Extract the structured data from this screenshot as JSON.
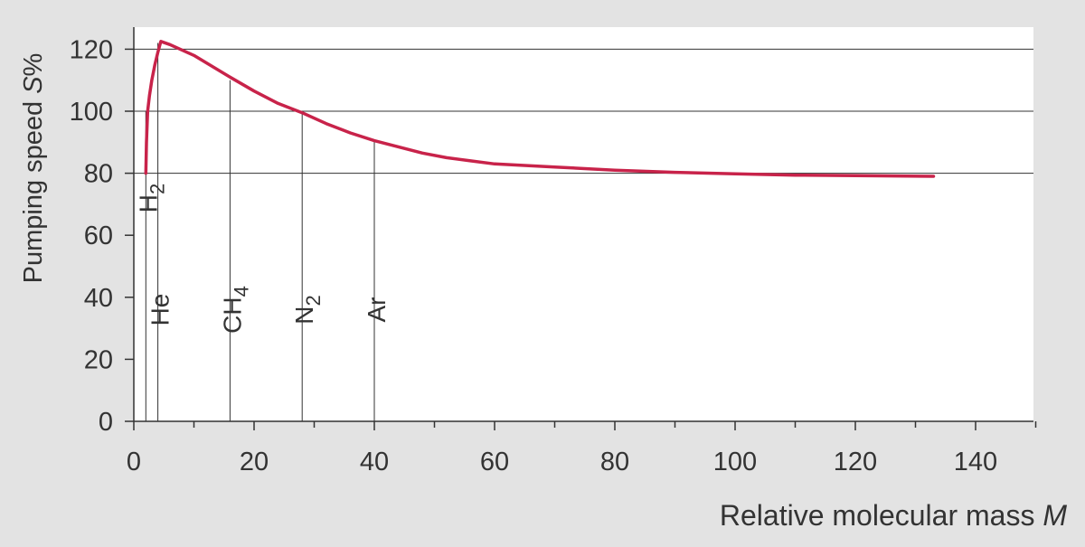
{
  "chart_data": {
    "type": "line",
    "ylabel": "Pumping speed S%",
    "ylabel_main": "Pumping speed ",
    "ylabel_var": "S",
    "ylabel_unit": "%",
    "xlabel": "Relative molecular mass M",
    "xlabel_main": "Relative molecular mass ",
    "xlabel_var": "M",
    "xlim": [
      0,
      150
    ],
    "ylim": [
      0,
      127
    ],
    "x_ticks": [
      0,
      20,
      40,
      60,
      80,
      100,
      120,
      140
    ],
    "x_minor_ticks": [
      10,
      30,
      50,
      70,
      90,
      110,
      130,
      150
    ],
    "y_ticks": [
      0,
      20,
      40,
      60,
      80,
      100,
      120
    ],
    "grid_y": [
      80,
      100,
      120
    ],
    "series": [
      {
        "x": [
          2,
          2.1,
          2.3,
          2.6,
          3,
          3.5,
          4,
          4.5,
          6,
          10,
          16,
          20,
          24,
          28,
          32,
          36,
          40,
          44,
          48,
          52,
          56,
          60,
          70,
          80,
          90,
          100,
          110,
          120,
          133
        ],
        "y": [
          80,
          90,
          100,
          105,
          110,
          115,
          119,
          122.5,
          121.5,
          118,
          111,
          106.5,
          102.5,
          99.5,
          96,
          93,
          90.5,
          88.5,
          86.5,
          85,
          84,
          83,
          82,
          81,
          80.3,
          79.8,
          79.4,
          79.2,
          79
        ]
      }
    ],
    "gases": [
      {
        "x": 2,
        "y_top": 100,
        "label": "H",
        "sub": "2"
      },
      {
        "x": 4,
        "y_top": 122,
        "label": "He",
        "sub": ""
      },
      {
        "x": 16,
        "y_top": 110,
        "label": "CH",
        "sub": "4"
      },
      {
        "x": 28,
        "y_top": 99.5,
        "label": "N",
        "sub": "2"
      },
      {
        "x": 40,
        "y_top": 90.5,
        "label": "Ar",
        "sub": ""
      }
    ],
    "colors": {
      "curve": "#c8234a",
      "text": "#333333",
      "background": "#e3e3e3",
      "plot_background": "#ffffff",
      "lines": "#333333"
    }
  }
}
